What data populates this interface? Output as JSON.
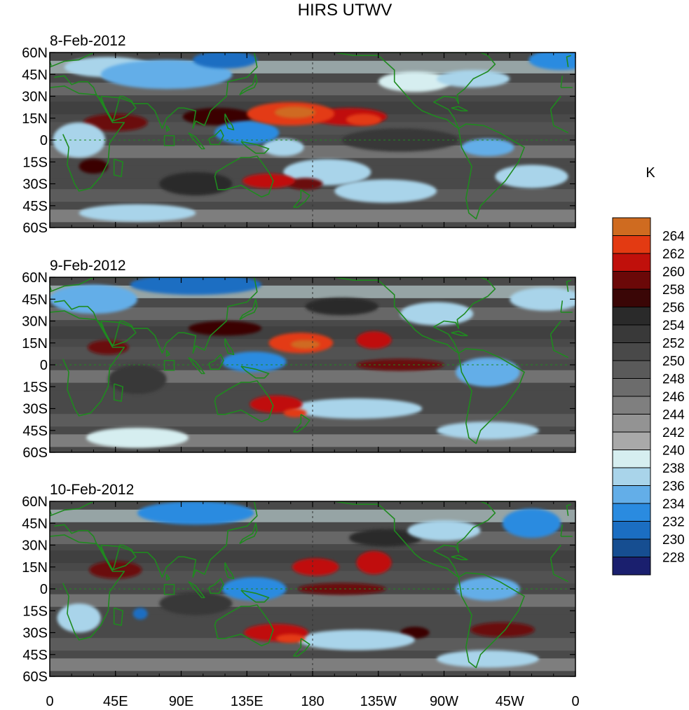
{
  "chart_data": {
    "type": "heatmap",
    "title": "HIRS UTWV",
    "colorbar": {
      "unit_label": "K",
      "levels": [
        228,
        230,
        232,
        234,
        236,
        238,
        240,
        242,
        244,
        246,
        248,
        250,
        252,
        254,
        256,
        258,
        260,
        262,
        264
      ],
      "tick_labels": [
        "228",
        "230",
        "232",
        "234",
        "236",
        "238",
        "240",
        "242",
        "244",
        "246",
        "248",
        "250",
        "252",
        "254",
        "256",
        "258",
        "260",
        "262",
        "264"
      ],
      "colors": [
        "#1a1f6e",
        "#164e91",
        "#1b6ec2",
        "#2a8be0",
        "#63aee8",
        "#a9d4ea",
        "#d6eef0",
        "#a9a9a9",
        "#939393",
        "#7f7f7f",
        "#6c6c6c",
        "#5a5a5a",
        "#494949",
        "#393939",
        "#2a2a2a",
        "#3a0606",
        "#6b0808",
        "#c0100b",
        "#e33a12",
        "#cf6b20"
      ]
    },
    "x_ticks": [
      "0",
      "45E",
      "90E",
      "135E",
      "180",
      "135W",
      "90W",
      "45W",
      "0"
    ],
    "y_ticks": [
      "60N",
      "45N",
      "30N",
      "15N",
      "0",
      "15S",
      "30S",
      "45S",
      "60S"
    ],
    "xlim": [
      0,
      360
    ],
    "ylim": [
      -60,
      60
    ],
    "panels": [
      {
        "date": "8-Feb-2012",
        "blobs": [
          {
            "lon": 165,
            "lat": 18,
            "rx": 30,
            "ry": 8,
            "v": 262
          },
          {
            "lon": 168,
            "lat": 19,
            "rx": 14,
            "ry": 4,
            "v": 265
          },
          {
            "lon": 205,
            "lat": 16,
            "rx": 26,
            "ry": 6,
            "v": 260
          },
          {
            "lon": 215,
            "lat": 14,
            "rx": 12,
            "ry": 4,
            "v": 262
          },
          {
            "lon": 150,
            "lat": -28,
            "rx": 18,
            "ry": 5,
            "v": 261
          },
          {
            "lon": 175,
            "lat": -30,
            "rx": 12,
            "ry": 4,
            "v": 259
          },
          {
            "lon": 45,
            "lat": 12,
            "rx": 22,
            "ry": 6,
            "v": 258
          },
          {
            "lon": 30,
            "lat": -18,
            "rx": 10,
            "ry": 5,
            "v": 257
          },
          {
            "lon": 115,
            "lat": 16,
            "rx": 24,
            "ry": 6,
            "v": 257
          },
          {
            "lon": 135,
            "lat": 5,
            "rx": 22,
            "ry": 8,
            "v": 233
          },
          {
            "lon": 160,
            "lat": -5,
            "rx": 14,
            "ry": 6,
            "v": 236
          },
          {
            "lon": 190,
            "lat": -22,
            "rx": 30,
            "ry": 9,
            "v": 237
          },
          {
            "lon": 230,
            "lat": -35,
            "rx": 35,
            "ry": 8,
            "v": 237
          },
          {
            "lon": 80,
            "lat": 45,
            "rx": 45,
            "ry": 10,
            "v": 234
          },
          {
            "lon": 120,
            "lat": 55,
            "rx": 22,
            "ry": 6,
            "v": 231
          },
          {
            "lon": 350,
            "lat": 55,
            "rx": 22,
            "ry": 7,
            "v": 232
          },
          {
            "lon": 40,
            "lat": 50,
            "rx": 30,
            "ry": 7,
            "v": 236
          },
          {
            "lon": 290,
            "lat": 42,
            "rx": 25,
            "ry": 6,
            "v": 237
          },
          {
            "lon": 300,
            "lat": -5,
            "rx": 18,
            "ry": 6,
            "v": 235
          },
          {
            "lon": 330,
            "lat": -25,
            "rx": 25,
            "ry": 8,
            "v": 237
          },
          {
            "lon": 60,
            "lat": -50,
            "rx": 40,
            "ry": 6,
            "v": 237
          },
          {
            "lon": 250,
            "lat": 40,
            "rx": 25,
            "ry": 7,
            "v": 239
          },
          {
            "lon": 100,
            "lat": -30,
            "rx": 25,
            "ry": 8,
            "v": 254
          },
          {
            "lon": 240,
            "lat": 0,
            "rx": 40,
            "ry": 8,
            "v": 253
          },
          {
            "lon": 20,
            "lat": 0,
            "rx": 18,
            "ry": 12,
            "v": 236
          }
        ]
      },
      {
        "date": "9-Feb-2012",
        "blobs": [
          {
            "lon": 172,
            "lat": 15,
            "rx": 22,
            "ry": 7,
            "v": 262
          },
          {
            "lon": 175,
            "lat": 14,
            "rx": 10,
            "ry": 3,
            "v": 264
          },
          {
            "lon": 222,
            "lat": 17,
            "rx": 12,
            "ry": 6,
            "v": 261
          },
          {
            "lon": 155,
            "lat": -27,
            "rx": 18,
            "ry": 6,
            "v": 260
          },
          {
            "lon": 168,
            "lat": -33,
            "rx": 8,
            "ry": 3,
            "v": 262
          },
          {
            "lon": 40,
            "lat": 12,
            "rx": 14,
            "ry": 5,
            "v": 259
          },
          {
            "lon": 240,
            "lat": 0,
            "rx": 30,
            "ry": 4,
            "v": 258
          },
          {
            "lon": 120,
            "lat": 25,
            "rx": 25,
            "ry": 5,
            "v": 257
          },
          {
            "lon": 140,
            "lat": 2,
            "rx": 22,
            "ry": 7,
            "v": 233
          },
          {
            "lon": 210,
            "lat": -30,
            "rx": 45,
            "ry": 7,
            "v": 236
          },
          {
            "lon": 300,
            "lat": -5,
            "rx": 22,
            "ry": 10,
            "v": 234
          },
          {
            "lon": 100,
            "lat": 55,
            "rx": 45,
            "ry": 7,
            "v": 231
          },
          {
            "lon": 30,
            "lat": 45,
            "rx": 30,
            "ry": 10,
            "v": 235
          },
          {
            "lon": 340,
            "lat": 45,
            "rx": 25,
            "ry": 8,
            "v": 236
          },
          {
            "lon": 300,
            "lat": -45,
            "rx": 35,
            "ry": 6,
            "v": 236
          },
          {
            "lon": 60,
            "lat": -50,
            "rx": 35,
            "ry": 7,
            "v": 238
          },
          {
            "lon": 265,
            "lat": 35,
            "rx": 25,
            "ry": 8,
            "v": 237
          },
          {
            "lon": 60,
            "lat": -10,
            "rx": 20,
            "ry": 10,
            "v": 253
          },
          {
            "lon": 200,
            "lat": 40,
            "rx": 25,
            "ry": 6,
            "v": 254
          }
        ]
      },
      {
        "date": "10-Feb-2012",
        "blobs": [
          {
            "lon": 182,
            "lat": 15,
            "rx": 16,
            "ry": 6,
            "v": 261
          },
          {
            "lon": 222,
            "lat": 18,
            "rx": 12,
            "ry": 8,
            "v": 261
          },
          {
            "lon": 155,
            "lat": -30,
            "rx": 22,
            "ry": 6,
            "v": 260
          },
          {
            "lon": 165,
            "lat": -34,
            "rx": 10,
            "ry": 3,
            "v": 262
          },
          {
            "lon": 45,
            "lat": 13,
            "rx": 18,
            "ry": 6,
            "v": 258
          },
          {
            "lon": 200,
            "lat": 0,
            "rx": 30,
            "ry": 4,
            "v": 258
          },
          {
            "lon": 310,
            "lat": -28,
            "rx": 22,
            "ry": 5,
            "v": 258
          },
          {
            "lon": 250,
            "lat": -30,
            "rx": 10,
            "ry": 4,
            "v": 257
          },
          {
            "lon": 140,
            "lat": 0,
            "rx": 22,
            "ry": 8,
            "v": 232
          },
          {
            "lon": 62,
            "lat": -17,
            "rx": 5,
            "ry": 4,
            "v": 230
          },
          {
            "lon": 330,
            "lat": 45,
            "rx": 20,
            "ry": 10,
            "v": 232
          },
          {
            "lon": 100,
            "lat": 52,
            "rx": 40,
            "ry": 8,
            "v": 233
          },
          {
            "lon": 300,
            "lat": 0,
            "rx": 22,
            "ry": 8,
            "v": 235
          },
          {
            "lon": 210,
            "lat": -35,
            "rx": 40,
            "ry": 7,
            "v": 237
          },
          {
            "lon": 20,
            "lat": -20,
            "rx": 15,
            "ry": 10,
            "v": 236
          },
          {
            "lon": 270,
            "lat": 40,
            "rx": 25,
            "ry": 7,
            "v": 236
          },
          {
            "lon": 300,
            "lat": -48,
            "rx": 35,
            "ry": 6,
            "v": 236
          },
          {
            "lon": 100,
            "lat": -10,
            "rx": 25,
            "ry": 8,
            "v": 253
          },
          {
            "lon": 230,
            "lat": 35,
            "rx": 25,
            "ry": 6,
            "v": 254
          }
        ]
      }
    ]
  }
}
